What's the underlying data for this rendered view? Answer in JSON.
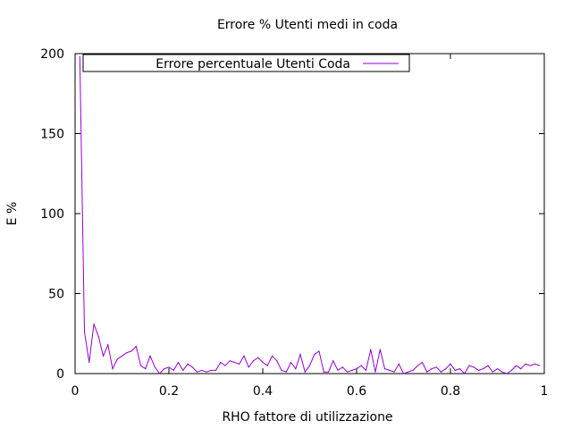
{
  "chart_data": {
    "type": "line",
    "title": "Errore % Utenti medi in coda",
    "xlabel": "RHO fattore di utilizzazione",
    "ylabel": "E %",
    "xlim": [
      0,
      1
    ],
    "ylim": [
      0,
      200
    ],
    "xticks": [
      "0",
      "0.2",
      "0.4",
      "0.6",
      "0.8",
      "1"
    ],
    "yticks": [
      "0",
      "50",
      "100",
      "150",
      "200"
    ],
    "grid": false,
    "legend_position": "top-left",
    "series": [
      {
        "name": "Errore percentuale Utenti Coda",
        "color": "#9400d3",
        "x": [
          0.01,
          0.02,
          0.03,
          0.04,
          0.05,
          0.06,
          0.07,
          0.08,
          0.09,
          0.1,
          0.11,
          0.12,
          0.13,
          0.14,
          0.15,
          0.16,
          0.17,
          0.18,
          0.19,
          0.2,
          0.21,
          0.22,
          0.23,
          0.24,
          0.25,
          0.26,
          0.27,
          0.28,
          0.29,
          0.3,
          0.31,
          0.32,
          0.33,
          0.34,
          0.35,
          0.36,
          0.37,
          0.38,
          0.39,
          0.4,
          0.41,
          0.42,
          0.43,
          0.44,
          0.45,
          0.46,
          0.47,
          0.48,
          0.49,
          0.5,
          0.51,
          0.52,
          0.53,
          0.54,
          0.55,
          0.56,
          0.57,
          0.58,
          0.59,
          0.6,
          0.61,
          0.62,
          0.63,
          0.64,
          0.65,
          0.66,
          0.67,
          0.68,
          0.69,
          0.7,
          0.71,
          0.72,
          0.73,
          0.74,
          0.75,
          0.76,
          0.77,
          0.78,
          0.79,
          0.8,
          0.81,
          0.82,
          0.83,
          0.84,
          0.85,
          0.86,
          0.87,
          0.88,
          0.89,
          0.9,
          0.91,
          0.92,
          0.93,
          0.94,
          0.95,
          0.96,
          0.97,
          0.98,
          0.99
        ],
        "y": [
          198,
          26,
          7,
          31,
          23,
          11,
          18,
          3,
          9,
          11,
          13,
          14,
          17,
          5,
          3,
          11,
          4,
          0,
          3,
          4,
          2,
          7,
          2,
          6,
          4,
          1,
          2,
          1,
          2,
          2,
          7,
          5,
          8,
          7,
          6,
          11,
          4,
          8,
          10,
          7,
          5,
          11,
          8,
          2,
          1,
          7,
          3,
          12,
          1,
          5,
          12,
          14,
          1,
          1,
          8,
          2,
          4,
          1,
          2,
          3,
          5,
          2,
          15,
          1,
          15,
          3,
          2,
          1,
          6,
          0,
          1,
          2,
          5,
          7,
          1,
          3,
          4,
          1,
          3,
          6,
          2,
          3,
          0,
          5,
          4,
          2,
          3,
          5,
          1,
          3,
          1,
          0,
          2,
          5,
          3,
          6,
          5,
          6,
          5
        ]
      }
    ]
  }
}
